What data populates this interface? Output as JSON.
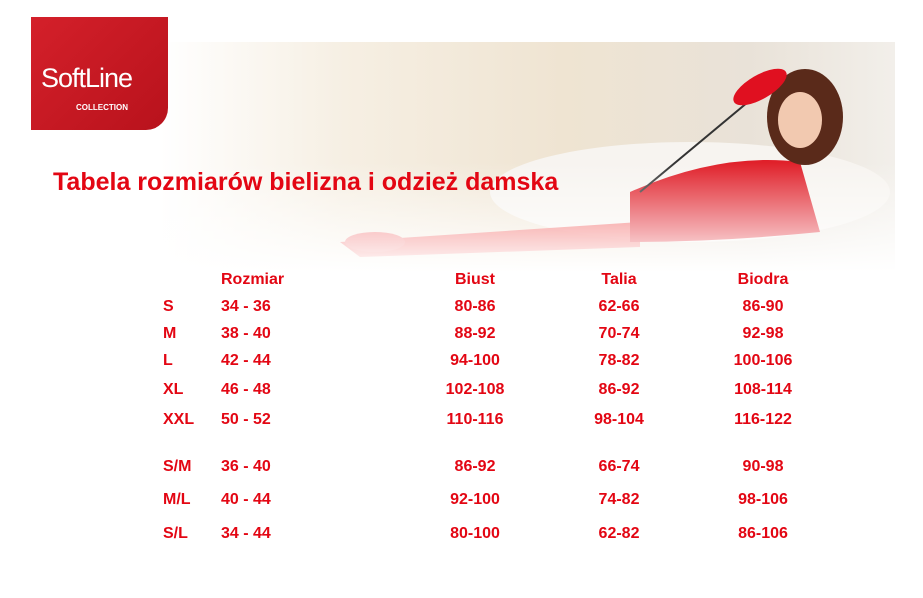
{
  "logo": {
    "brand": "SoftLine",
    "sub": "COLLECTION"
  },
  "title": "Tabela rozmiarów bielizna i odzież damska",
  "colors": {
    "accent": "#e30613",
    "logo_bg": "#c8161f"
  },
  "table": {
    "headers": [
      "Rozmiar",
      "Biust",
      "Talia",
      "Biodra"
    ],
    "rows": [
      {
        "size": "S",
        "eu": "34 - 36",
        "biust": "80-86",
        "talia": "62-66",
        "biodra": "86-90"
      },
      {
        "size": "M",
        "eu": "38 - 40",
        "biust": "88-92",
        "talia": "70-74",
        "biodra": "92-98"
      },
      {
        "size": "L",
        "eu": "42 - 44",
        "biust": "94-100",
        "talia": "78-82",
        "biodra": "100-106"
      },
      {
        "size": "XL",
        "eu": "46 - 48",
        "biust": "102-108",
        "talia": "86-92",
        "biodra": "108-114"
      },
      {
        "size": "XXL",
        "eu": "50 - 52",
        "biust": "110-116",
        "talia": "98-104",
        "biodra": "116-122"
      },
      {
        "size": "S/M",
        "eu": "36 - 40",
        "biust": "86-92",
        "talia": "66-74",
        "biodra": "90-98"
      },
      {
        "size": "M/L",
        "eu": "40 - 44",
        "biust": "92-100",
        "talia": "74-82",
        "biodra": "98-106"
      },
      {
        "size": "S/L",
        "eu": "34 - 44",
        "biust": "80-100",
        "talia": "62-82",
        "biodra": "86-106"
      }
    ]
  }
}
